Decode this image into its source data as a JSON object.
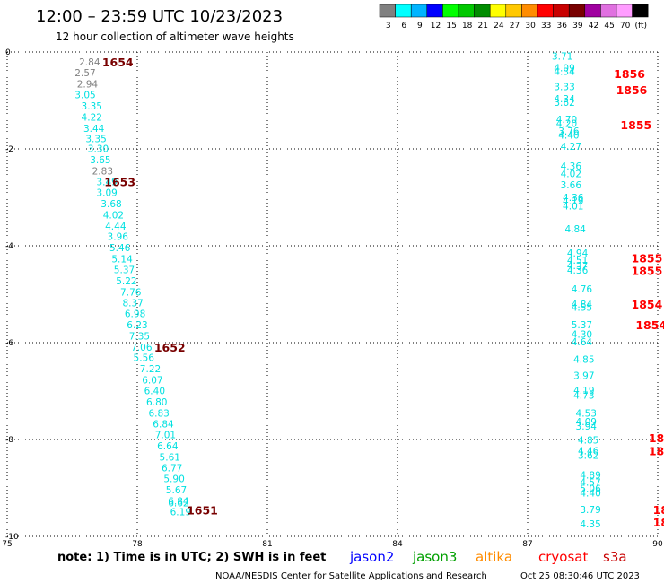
{
  "header": {
    "title": "12:00 – 23:59 UTC 10/23/2023",
    "subtitle": "12 hour collection of altimeter wave heights"
  },
  "legend": {
    "labels": [
      "3",
      "6",
      "9",
      "12",
      "15",
      "18",
      "21",
      "24",
      "27",
      "30",
      "33",
      "36",
      "39",
      "42",
      "45",
      "70",
      "(ft)"
    ],
    "colors": [
      "#808080",
      "#00ffff",
      "#00b4ff",
      "#0000ff",
      "#00ff00",
      "#00c800",
      "#008c00",
      "#ffff00",
      "#ffc800",
      "#ff8c00",
      "#ff0000",
      "#c80000",
      "#780000",
      "#a000a0",
      "#e070e0",
      "#ff9cff",
      "#000000"
    ]
  },
  "footer": {
    "note": "note:  1) Time is in UTC;  2) SWH is in feet",
    "satellites": [
      {
        "name": "jason2",
        "color": "#0000ff"
      },
      {
        "name": "jason3",
        "color": "#00a000"
      },
      {
        "name": "altika",
        "color": "#ff8c00"
      },
      {
        "name": "cryosat",
        "color": "#ff0000"
      },
      {
        "name": "s3a",
        "color": "#c80000"
      }
    ],
    "credit": "NOAA/NESDIS Center for Satellite Applications and Research",
    "timestamp": "Oct 25 08:30:46 UTC 2023"
  },
  "chart_data": {
    "type": "scatter",
    "title": "12:00 – 23:59 UTC 10/23/2023",
    "subtitle": "12 hour collection of altimeter wave heights",
    "xlim": [
      75,
      90
    ],
    "ylim": [
      -10,
      0
    ],
    "x_ticks": [
      "75",
      "78",
      "81",
      "84",
      "87",
      "90"
    ],
    "y_ticks": [
      "0",
      "-2",
      "-4",
      "-6",
      "-8",
      "-10"
    ],
    "grid": true,
    "track1_values": [
      {
        "x": 76.9,
        "y": -0.2,
        "v": "2.84",
        "c": "#808080"
      },
      {
        "x": 76.8,
        "y": -0.43,
        "v": "2.57",
        "c": "#808080"
      },
      {
        "x": 76.85,
        "y": -0.66,
        "v": "2.94",
        "c": "#808080"
      },
      {
        "x": 76.8,
        "y": -0.88,
        "v": "3.05",
        "c": "#00e0e0"
      },
      {
        "x": 76.95,
        "y": -1.11,
        "v": "3.35",
        "c": "#00e0e0"
      },
      {
        "x": 76.95,
        "y": -1.34,
        "v": "4.22",
        "c": "#00e0e0"
      },
      {
        "x": 77.0,
        "y": -1.57,
        "v": "3.44",
        "c": "#00e0e0"
      },
      {
        "x": 77.05,
        "y": -1.79,
        "v": "3.35",
        "c": "#00e0e0"
      },
      {
        "x": 77.1,
        "y": -1.99,
        "v": "3.30",
        "c": "#00e0e0"
      },
      {
        "x": 77.15,
        "y": -2.22,
        "v": "3.65",
        "c": "#00e0e0"
      },
      {
        "x": 77.2,
        "y": -2.45,
        "v": "2.83",
        "c": "#808080"
      },
      {
        "x": 77.3,
        "y": -2.68,
        "v": "3.49",
        "c": "#00e0e0"
      },
      {
        "x": 77.3,
        "y": -2.9,
        "v": "3.09",
        "c": "#00e0e0"
      },
      {
        "x": 77.4,
        "y": -3.13,
        "v": "3.68",
        "c": "#00e0e0"
      },
      {
        "x": 77.45,
        "y": -3.36,
        "v": "4.02",
        "c": "#00e0e0"
      },
      {
        "x": 77.5,
        "y": -3.59,
        "v": "4.44",
        "c": "#00e0e0"
      },
      {
        "x": 77.55,
        "y": -3.81,
        "v": "3.96",
        "c": "#00e0e0"
      },
      {
        "x": 77.6,
        "y": -4.04,
        "v": "5.46",
        "c": "#00e0e0"
      },
      {
        "x": 77.65,
        "y": -4.27,
        "v": "5.14",
        "c": "#00e0e0"
      },
      {
        "x": 77.7,
        "y": -4.49,
        "v": "5.37",
        "c": "#00e0e0"
      },
      {
        "x": 77.75,
        "y": -4.72,
        "v": "5.22",
        "c": "#00e0e0"
      },
      {
        "x": 77.85,
        "y": -4.95,
        "v": "7.76",
        "c": "#00e0e0"
      },
      {
        "x": 77.9,
        "y": -5.18,
        "v": "8.37",
        "c": "#00e0e0"
      },
      {
        "x": 77.95,
        "y": -5.4,
        "v": "6.98",
        "c": "#00e0e0"
      },
      {
        "x": 78.0,
        "y": -5.63,
        "v": "6.23",
        "c": "#00e0e0"
      },
      {
        "x": 78.05,
        "y": -5.86,
        "v": "7.35",
        "c": "#00e0e0"
      },
      {
        "x": 78.1,
        "y": -6.09,
        "v": "7.06",
        "c": "#00e0e0"
      },
      {
        "x": 78.15,
        "y": -6.31,
        "v": "5.56",
        "c": "#00e0e0"
      },
      {
        "x": 78.3,
        "y": -6.54,
        "v": "7.22",
        "c": "#00e0e0"
      },
      {
        "x": 78.35,
        "y": -6.77,
        "v": "6.07",
        "c": "#00e0e0"
      },
      {
        "x": 78.4,
        "y": -6.99,
        "v": "6.40",
        "c": "#00e0e0"
      },
      {
        "x": 78.45,
        "y": -7.22,
        "v": "6.80",
        "c": "#00e0e0"
      },
      {
        "x": 78.5,
        "y": -7.45,
        "v": "6.83",
        "c": "#00e0e0"
      },
      {
        "x": 78.6,
        "y": -7.68,
        "v": "6.84",
        "c": "#00e0e0"
      },
      {
        "x": 78.65,
        "y": -7.9,
        "v": "7.01",
        "c": "#00e0e0"
      },
      {
        "x": 78.7,
        "y": -8.13,
        "v": "6.64",
        "c": "#00e0e0"
      },
      {
        "x": 78.75,
        "y": -8.36,
        "v": "5.61",
        "c": "#00e0e0"
      },
      {
        "x": 78.8,
        "y": -8.58,
        "v": "6.77",
        "c": "#00e0e0"
      },
      {
        "x": 78.85,
        "y": -8.81,
        "v": "5.90",
        "c": "#00e0e0"
      },
      {
        "x": 78.9,
        "y": -9.04,
        "v": "5.67",
        "c": "#00e0e0"
      },
      {
        "x": 78.95,
        "y": -9.27,
        "v": "6.84",
        "c": "#00e0e0"
      },
      {
        "x": 78.95,
        "y": -9.31,
        "v": "6.62",
        "c": "#00e0e0"
      },
      {
        "x": 79.0,
        "y": -9.49,
        "v": "6.19",
        "c": "#00e0e0"
      }
    ],
    "track2_values": [
      {
        "x": 87.8,
        "y": -0.08,
        "v": "3.71",
        "c": "#00e0e0"
      },
      {
        "x": 87.85,
        "y": -0.32,
        "v": "4.09",
        "c": "#00e0e0"
      },
      {
        "x": 87.85,
        "y": -0.4,
        "v": "4.34",
        "c": "#00e0e0"
      },
      {
        "x": 87.85,
        "y": -0.71,
        "v": "3.33",
        "c": "#00e0e0"
      },
      {
        "x": 87.85,
        "y": -0.96,
        "v": "4.34",
        "c": "#00e0e0"
      },
      {
        "x": 87.85,
        "y": -1.04,
        "v": "3.62",
        "c": "#00e0e0"
      },
      {
        "x": 87.9,
        "y": -1.39,
        "v": "4.70",
        "c": "#00e0e0"
      },
      {
        "x": 87.9,
        "y": -1.47,
        "v": "4.20",
        "c": "#00e0e0"
      },
      {
        "x": 87.95,
        "y": -1.63,
        "v": "3.76",
        "c": "#00e0e0"
      },
      {
        "x": 87.95,
        "y": -1.71,
        "v": "4.40",
        "c": "#00e0e0"
      },
      {
        "x": 88.0,
        "y": -1.94,
        "v": "4.27",
        "c": "#00e0e0"
      },
      {
        "x": 88.0,
        "y": -2.35,
        "v": "4.36",
        "c": "#00e0e0"
      },
      {
        "x": 88.0,
        "y": -2.51,
        "v": "4.02",
        "c": "#00e0e0"
      },
      {
        "x": 88.0,
        "y": -2.74,
        "v": "3.66",
        "c": "#00e0e0"
      },
      {
        "x": 88.05,
        "y": -3.0,
        "v": "4.36",
        "c": "#00e0e0"
      },
      {
        "x": 88.05,
        "y": -3.07,
        "v": "4.19",
        "c": "#00e0e0"
      },
      {
        "x": 88.05,
        "y": -3.18,
        "v": "4.01",
        "c": "#00e0e0"
      },
      {
        "x": 88.1,
        "y": -3.65,
        "v": "4.84",
        "c": "#00e0e0"
      },
      {
        "x": 88.15,
        "y": -4.15,
        "v": "4.94",
        "c": "#00e0e0"
      },
      {
        "x": 88.15,
        "y": -4.3,
        "v": "4.51",
        "c": "#00e0e0"
      },
      {
        "x": 88.15,
        "y": -4.41,
        "v": "4.37",
        "c": "#00e0e0"
      },
      {
        "x": 88.15,
        "y": -4.5,
        "v": "4.36",
        "c": "#00e0e0"
      },
      {
        "x": 88.25,
        "y": -4.89,
        "v": "4.76",
        "c": "#00e0e0"
      },
      {
        "x": 88.25,
        "y": -5.2,
        "v": "4.84",
        "c": "#00e0e0"
      },
      {
        "x": 88.25,
        "y": -5.27,
        "v": "4.55",
        "c": "#00e0e0"
      },
      {
        "x": 88.25,
        "y": -5.63,
        "v": "5.37",
        "c": "#00e0e0"
      },
      {
        "x": 88.25,
        "y": -5.82,
        "v": "4.30",
        "c": "#00e0e0"
      },
      {
        "x": 88.25,
        "y": -5.98,
        "v": "4.64",
        "c": "#00e0e0"
      },
      {
        "x": 88.3,
        "y": -6.34,
        "v": "4.85",
        "c": "#00e0e0"
      },
      {
        "x": 88.3,
        "y": -6.68,
        "v": "3.97",
        "c": "#00e0e0"
      },
      {
        "x": 88.3,
        "y": -6.98,
        "v": "4.19",
        "c": "#00e0e0"
      },
      {
        "x": 88.3,
        "y": -7.08,
        "v": "4.73",
        "c": "#00e0e0"
      },
      {
        "x": 88.35,
        "y": -7.45,
        "v": "4.53",
        "c": "#00e0e0"
      },
      {
        "x": 88.35,
        "y": -7.63,
        "v": "4.09",
        "c": "#00e0e0"
      },
      {
        "x": 88.35,
        "y": -7.72,
        "v": "3.94",
        "c": "#00e0e0"
      },
      {
        "x": 88.4,
        "y": -8.01,
        "v": "4.85",
        "c": "#00e0e0"
      },
      {
        "x": 88.4,
        "y": -8.23,
        "v": "4.46",
        "c": "#00e0e0"
      },
      {
        "x": 88.4,
        "y": -8.32,
        "v": "3.62",
        "c": "#00e0e0"
      },
      {
        "x": 88.45,
        "y": -8.73,
        "v": "4.89",
        "c": "#00e0e0"
      },
      {
        "x": 88.45,
        "y": -8.88,
        "v": "4.57",
        "c": "#00e0e0"
      },
      {
        "x": 88.45,
        "y": -9.01,
        "v": "5.06",
        "c": "#00e0e0"
      },
      {
        "x": 88.45,
        "y": -9.1,
        "v": "4.40",
        "c": "#00e0e0"
      },
      {
        "x": 88.45,
        "y": -9.44,
        "v": "3.79",
        "c": "#00e0e0"
      },
      {
        "x": 88.45,
        "y": -9.74,
        "v": "4.35",
        "c": "#00e0e0"
      }
    ],
    "time_labels": [
      {
        "x": 77.55,
        "y": -0.2,
        "v": "1654",
        "c": "#780000"
      },
      {
        "x": 77.6,
        "y": -2.68,
        "v": "1653",
        "c": "#780000"
      },
      {
        "x": 78.75,
        "y": -6.09,
        "v": "1652",
        "c": "#780000"
      },
      {
        "x": 79.5,
        "y": -9.45,
        "v": "1651",
        "c": "#780000"
      },
      {
        "x": 89.35,
        "y": -0.44,
        "v": "1856",
        "c": "#ff0000"
      },
      {
        "x": 89.4,
        "y": -0.78,
        "v": "1856",
        "c": "#ff0000"
      },
      {
        "x": 89.5,
        "y": -1.5,
        "v": "1855",
        "c": "#ff0000"
      },
      {
        "x": 89.75,
        "y": -4.25,
        "v": "1855",
        "c": "#ff0000"
      },
      {
        "x": 89.75,
        "y": -4.51,
        "v": "1855",
        "c": "#ff0000"
      },
      {
        "x": 89.75,
        "y": -5.2,
        "v": "1854",
        "c": "#ff0000"
      },
      {
        "x": 89.85,
        "y": -5.63,
        "v": "1854",
        "c": "#ff0000"
      },
      {
        "x": 90.15,
        "y": -7.96,
        "v": "1854",
        "c": "#ff0000"
      },
      {
        "x": 90.15,
        "y": -8.23,
        "v": "1854",
        "c": "#ff0000"
      },
      {
        "x": 90.25,
        "y": -9.44,
        "v": "1853",
        "c": "#ff0000"
      },
      {
        "x": 90.25,
        "y": -9.7,
        "v": "1853",
        "c": "#ff0000"
      }
    ]
  }
}
